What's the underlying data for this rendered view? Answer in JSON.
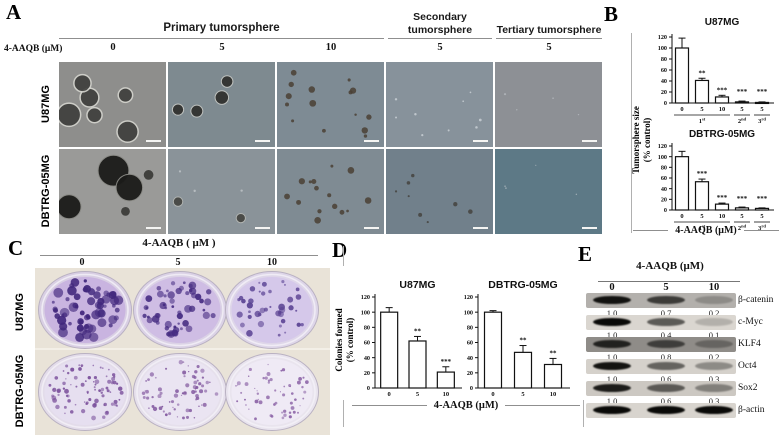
{
  "panel_a": {
    "label": "A",
    "dose_label": "4-AAQB (μM)",
    "headers": [
      {
        "text": "Primary tumorsphere"
      },
      {
        "text": "Secondary tumorsphere"
      },
      {
        "text": "Tertiary tumorsphere"
      }
    ],
    "doses": [
      "0",
      "5",
      "10",
      "5",
      "5"
    ],
    "row_labels": [
      "U87MG",
      "DBTRG-05MG"
    ],
    "cells": [
      [
        {
          "tint": "#8e8e8c",
          "content": "spheres-large-halo"
        },
        {
          "tint": "#7e8a90",
          "content": "spheres-medium"
        },
        {
          "tint": "#7e8b94",
          "content": "debris"
        },
        {
          "tint": "#87929b",
          "content": "specks"
        },
        {
          "tint": "#8d9095",
          "content": "empty"
        }
      ],
      [
        {
          "tint": "#9a9a98",
          "content": "spheres-xlarge"
        },
        {
          "tint": "#8a9399",
          "content": "spheres-few"
        },
        {
          "tint": "#7f8b93",
          "content": "debris"
        },
        {
          "tint": "#71808b",
          "content": "debris-sparse"
        },
        {
          "tint": "#5d7986",
          "content": "empty"
        }
      ]
    ]
  },
  "panel_b": {
    "label": "B",
    "ylabel_line1": "Tumorsphere size",
    "ylabel_line2": "(% control)",
    "xlabel": "4-AAQB (μM)"
  },
  "panel_c": {
    "label": "C",
    "header": "4-AAQB ( μM )",
    "doses": [
      "0",
      "5",
      "10"
    ],
    "row_labels": [
      "U87MG",
      "DBTRG-05MG"
    ],
    "photo_bg": "#e9e3d8",
    "plates": [
      [
        {
          "fill": "#c9b4e0",
          "rim": "#d9cfe4",
          "dot_color": "#41277c",
          "dot_count": 62,
          "dot_size": 4.5
        },
        {
          "fill": "#cfbde4",
          "rim": "#dbd2e6",
          "dot_color": "#462c82",
          "dot_count": 54,
          "dot_size": 3.8
        },
        {
          "fill": "#d5c8ea",
          "rim": "#ded6e9",
          "dot_color": "#5a4293",
          "dot_count": 40,
          "dot_size": 3.2
        }
      ],
      [
        {
          "fill": "#e6dff0",
          "rim": "#e3dcea",
          "dot_color": "#7a4f9b",
          "dot_count": 85,
          "dot_size": 2.2
        },
        {
          "fill": "#eae4f2",
          "rim": "#e6e0ec",
          "dot_color": "#82589f",
          "dot_count": 72,
          "dot_size": 2.0
        },
        {
          "fill": "#efeaf5",
          "rim": "#e9e4ee",
          "dot_color": "#8a61a5",
          "dot_count": 58,
          "dot_size": 1.8
        }
      ]
    ]
  },
  "panel_d": {
    "label": "D",
    "ylabel_line1": "Colonies formed",
    "ylabel_line2": "(% control)",
    "xlabel": "4-AAQB (μM)"
  },
  "panel_e": {
    "label": "E",
    "header": "4-AAQB (μM)",
    "doses": [
      "0",
      "5",
      "10"
    ],
    "blots": [
      {
        "protein": "β-catenin",
        "quant": [
          "1.0",
          "0.7",
          "0.2"
        ],
        "intensities": [
          0.95,
          0.7,
          0.22
        ],
        "strip": "#b3b0ac"
      },
      {
        "protein": "c-Myc",
        "quant": [
          "1.0",
          "0.4",
          "0.1"
        ],
        "intensities": [
          1.0,
          0.6,
          0.18
        ],
        "strip": "#dad6d0"
      },
      {
        "protein": "KLF4",
        "quant": [
          "1.0",
          "0.8",
          "0.2"
        ],
        "intensities": [
          0.82,
          0.6,
          0.3
        ],
        "strip": "#8f8c88"
      },
      {
        "protein": "Oct4",
        "quant": [
          "1.0",
          "0.6",
          "0.3"
        ],
        "intensities": [
          0.95,
          0.55,
          0.35
        ],
        "strip": "#d5d1cb"
      },
      {
        "protein": "Sox2",
        "quant": [
          "1.0",
          "0.6",
          "0.3"
        ],
        "intensities": [
          0.9,
          0.58,
          0.38
        ],
        "strip": "#ccc8c2"
      },
      {
        "protein": "β-actin",
        "quant": [],
        "intensities": [
          1.0,
          1.0,
          1.0
        ],
        "strip": "#d8d4ce"
      }
    ]
  },
  "chart_data": [
    {
      "panel": "B",
      "type": "bar",
      "title": "U87MG",
      "categories": [
        "0",
        "5",
        "10",
        "5",
        "5"
      ],
      "values": [
        100,
        41,
        11,
        2,
        1
      ],
      "errors": [
        18,
        4,
        3,
        1.5,
        1
      ],
      "sig": [
        "",
        "**",
        "***",
        "***",
        "***"
      ],
      "groups": [
        {
          "base": "1",
          "sup": "st",
          "from": 0,
          "to": 2
        },
        {
          "base": "2",
          "sup": "nd",
          "from": 3,
          "to": 3
        },
        {
          "base": "3",
          "sup": "rd",
          "from": 4,
          "to": 4
        }
      ],
      "ylabel": "Tumorsphere size (% control)",
      "xlabel": "4-AAQB (μM)",
      "ylim": [
        0,
        120
      ],
      "yticks": [
        0,
        20,
        40,
        60,
        80,
        100,
        120
      ]
    },
    {
      "panel": "B",
      "type": "bar",
      "title": "DBTRG-05MG",
      "categories": [
        "0",
        "5",
        "10",
        "5",
        "5"
      ],
      "values": [
        100,
        53,
        11,
        4,
        3
      ],
      "errors": [
        10,
        5,
        2,
        1.5,
        1
      ],
      "sig": [
        "",
        "***",
        "***",
        "***",
        "***"
      ],
      "groups": [
        {
          "base": "1",
          "sup": "st",
          "from": 0,
          "to": 2
        },
        {
          "base": "2",
          "sup": "nd",
          "from": 3,
          "to": 3
        },
        {
          "base": "3",
          "sup": "rd",
          "from": 4,
          "to": 4
        }
      ],
      "ylabel": "Tumorsphere size (% control)",
      "xlabel": "4-AAQB (μM)",
      "ylim": [
        0,
        120
      ],
      "yticks": [
        0,
        20,
        40,
        60,
        80,
        100,
        120
      ]
    },
    {
      "panel": "D",
      "type": "bar",
      "title": "U87MG",
      "categories": [
        "0",
        "5",
        "10"
      ],
      "values": [
        100,
        62,
        21
      ],
      "errors": [
        6,
        6,
        7
      ],
      "sig": [
        "",
        "**",
        "***"
      ],
      "ylabel": "Colonies formed (% control)",
      "xlabel": "4-AAQB (μM)",
      "ylim": [
        0,
        120
      ],
      "yticks": [
        0,
        20,
        40,
        60,
        80,
        100,
        120
      ]
    },
    {
      "panel": "D",
      "type": "bar",
      "title": "DBTRG-05MG",
      "categories": [
        "0",
        "5",
        "10"
      ],
      "values": [
        100,
        47,
        31
      ],
      "errors": [
        2,
        9,
        8
      ],
      "sig": [
        "",
        "**",
        "**"
      ],
      "ylabel": "Colonies formed (% control)",
      "xlabel": "4-AAQB (μM)",
      "ylim": [
        0,
        120
      ],
      "yticks": [
        0,
        20,
        40,
        60,
        80,
        100,
        120
      ]
    }
  ]
}
